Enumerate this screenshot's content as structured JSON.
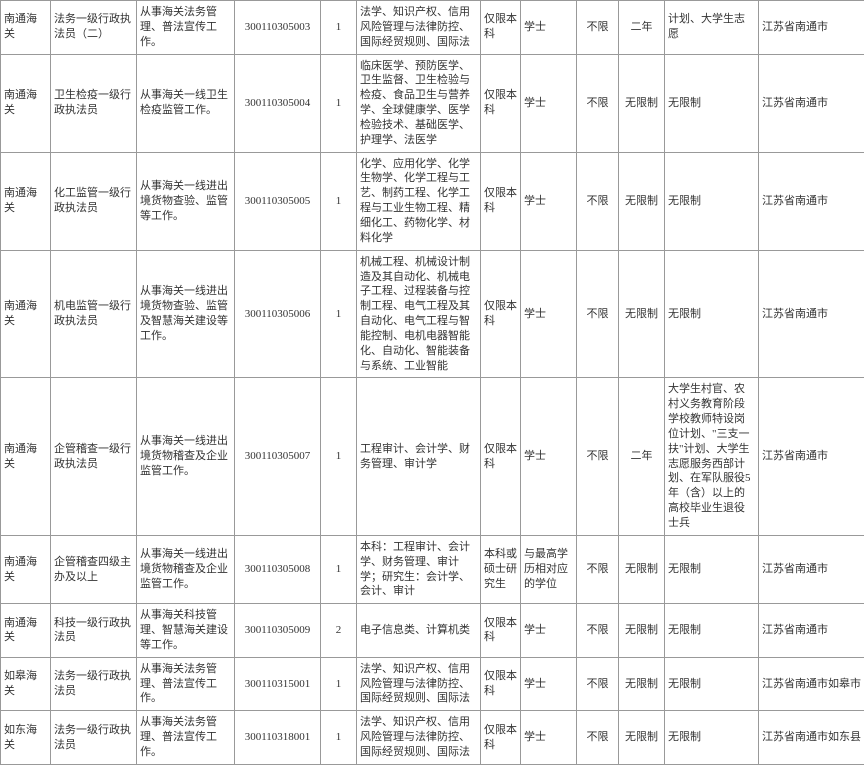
{
  "table": {
    "columns": [
      {
        "class": "c0"
      },
      {
        "class": "c1"
      },
      {
        "class": "c2"
      },
      {
        "class": "c3"
      },
      {
        "class": "c4"
      },
      {
        "class": "c5"
      },
      {
        "class": "c6"
      },
      {
        "class": "c7"
      },
      {
        "class": "c8"
      },
      {
        "class": "c9"
      },
      {
        "class": "c10"
      },
      {
        "class": "c11"
      }
    ],
    "rows": [
      {
        "org": "南通海关",
        "post": "法务一级行政执法员（二）",
        "duty": "从事海关法务管理、普法宣传工作。",
        "code": "300110305003",
        "count": "1",
        "major": "法学、知识产权、信用风险管理与法律防控、国际经贸规则、国际法",
        "edu": "仅限本科",
        "degree": "学士",
        "pol": "不限",
        "exp": "二年",
        "other": "计划、大学生志愿",
        "loc": "江苏省南通市"
      },
      {
        "org": "南通海关",
        "post": "卫生检疫一级行政执法员",
        "duty": "从事海关一线卫生检疫监管工作。",
        "code": "300110305004",
        "count": "1",
        "major": "临床医学、预防医学、卫生监督、卫生检验与检疫、食品卫生与营养学、全球健康学、医学检验技术、基础医学、护理学、法医学",
        "edu": "仅限本科",
        "degree": "学士",
        "pol": "不限",
        "exp": "无限制",
        "other": "无限制",
        "loc": "江苏省南通市"
      },
      {
        "org": "南通海关",
        "post": "化工监管一级行政执法员",
        "duty": "从事海关一线进出境货物查验、监管等工作。",
        "code": "300110305005",
        "count": "1",
        "major": "化学、应用化学、化学生物学、化学工程与工艺、制药工程、化学工程与工业生物工程、精细化工、药物化学、材料化学",
        "edu": "仅限本科",
        "degree": "学士",
        "pol": "不限",
        "exp": "无限制",
        "other": "无限制",
        "loc": "江苏省南通市"
      },
      {
        "org": "南通海关",
        "post": "机电监管一级行政执法员",
        "duty": "从事海关一线进出境货物查验、监管及智慧海关建设等工作。",
        "code": "300110305006",
        "count": "1",
        "major": "机械工程、机械设计制造及其自动化、机械电子工程、过程装备与控制工程、电气工程及其自动化、电气工程与智能控制、电机电器智能化、自动化、智能装备与系统、工业智能",
        "edu": "仅限本科",
        "degree": "学士",
        "pol": "不限",
        "exp": "无限制",
        "other": "无限制",
        "loc": "江苏省南通市"
      },
      {
        "org": "南通海关",
        "post": "企管稽查一级行政执法员",
        "duty": "从事海关一线进出境货物稽查及企业监管工作。",
        "code": "300110305007",
        "count": "1",
        "major": "工程审计、会计学、财务管理、审计学",
        "edu": "仅限本科",
        "degree": "学士",
        "pol": "不限",
        "exp": "二年",
        "other": "大学生村官、农村义务教育阶段学校教师特设岗位计划、\"三支一扶\"计划、大学生志愿服务西部计划、在军队服役5年（含）以上的高校毕业生退役士兵",
        "loc": "江苏省南通市"
      },
      {
        "org": "南通海关",
        "post": "企管稽查四级主办及以上",
        "duty": "从事海关一线进出境货物稽查及企业监管工作。",
        "code": "300110305008",
        "count": "1",
        "major": "本科：工程审计、会计学、财务管理、审计学；研究生：会计学、会计、审计",
        "edu": "本科或硕士研究生",
        "degree": "与最高学历相对应的学位",
        "pol": "不限",
        "exp": "无限制",
        "other": "无限制",
        "loc": "江苏省南通市"
      },
      {
        "org": "南通海关",
        "post": "科技一级行政执法员",
        "duty": "从事海关科技管理、智慧海关建设等工作。",
        "code": "300110305009",
        "count": "2",
        "major": "电子信息类、计算机类",
        "edu": "仅限本科",
        "degree": "学士",
        "pol": "不限",
        "exp": "无限制",
        "other": "无限制",
        "loc": "江苏省南通市"
      },
      {
        "org": "如皋海关",
        "post": "法务一级行政执法员",
        "duty": "从事海关法务管理、普法宣传工作。",
        "code": "300110315001",
        "count": "1",
        "major": "法学、知识产权、信用风险管理与法律防控、国际经贸规则、国际法",
        "edu": "仅限本科",
        "degree": "学士",
        "pol": "不限",
        "exp": "无限制",
        "other": "无限制",
        "loc": "江苏省南通市如皋市"
      },
      {
        "org": "如东海关",
        "post": "法务一级行政执法员",
        "duty": "从事海关法务管理、普法宣传工作。",
        "code": "300110318001",
        "count": "1",
        "major": "法学、知识产权、信用风险管理与法律防控、国际经贸规则、国际法",
        "edu": "仅限本科",
        "degree": "学士",
        "pol": "不限",
        "exp": "无限制",
        "other": "无限制",
        "loc": "江苏省南通市如东县"
      }
    ],
    "border_color": "#999999",
    "text_color": "#333333",
    "background_color": "#ffffff",
    "fontsize": 11
  }
}
